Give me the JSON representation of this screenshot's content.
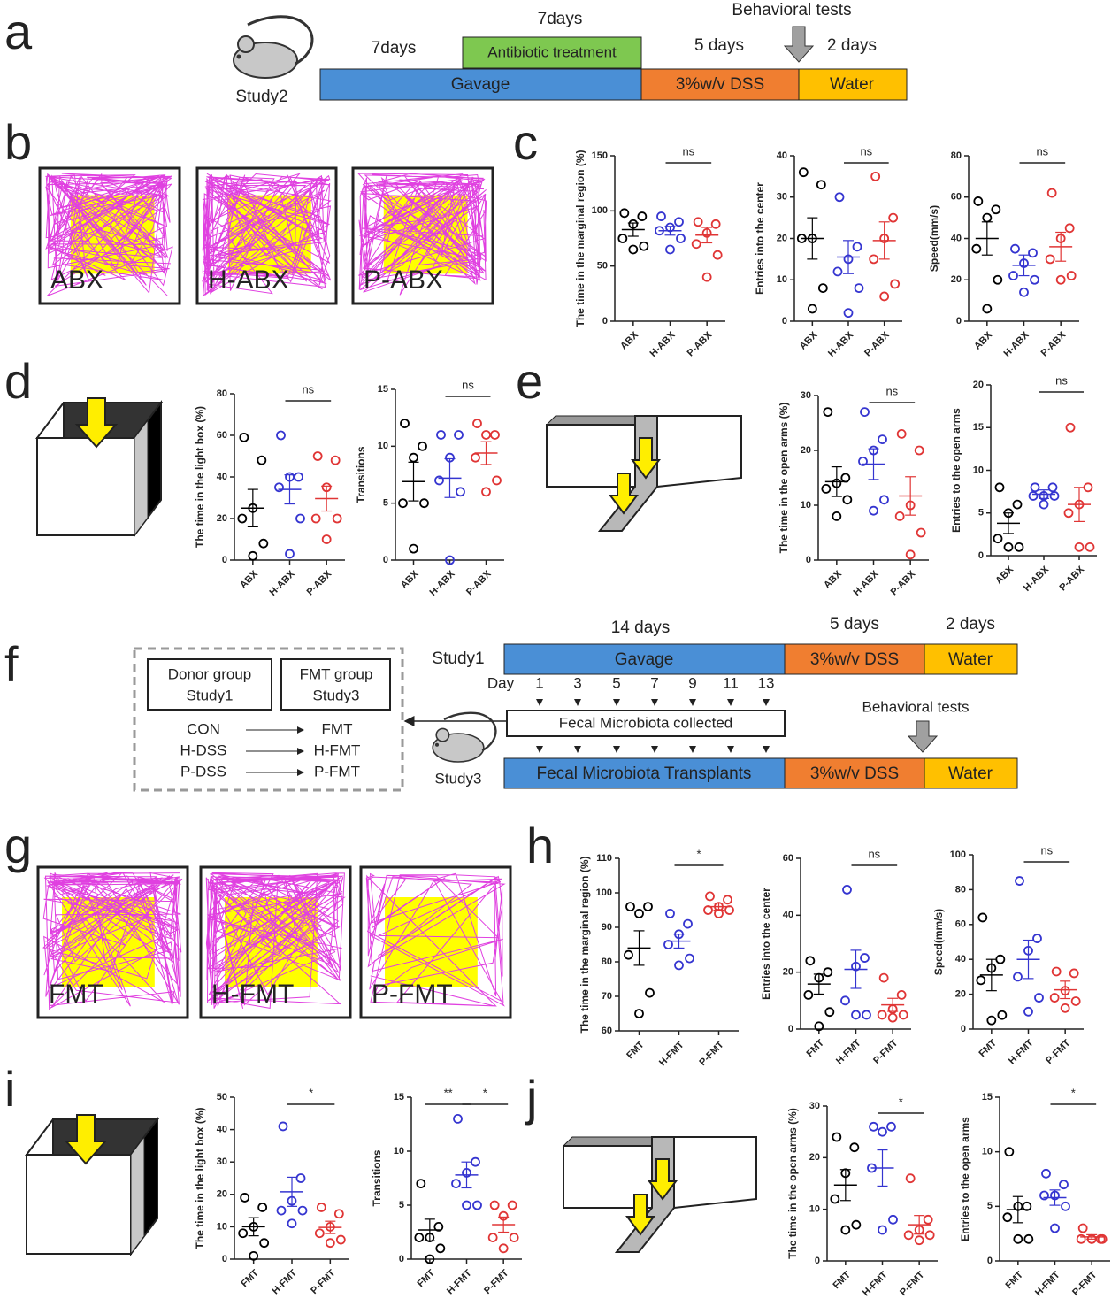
{
  "panel_letters": [
    "a",
    "b",
    "c",
    "d",
    "e",
    "f",
    "g",
    "h",
    "i",
    "j"
  ],
  "timeline_a": {
    "study": "Study2",
    "durations": [
      "7days",
      "7days",
      "5 days",
      "2 days"
    ],
    "phases": [
      "Gavage",
      "Antibiotic treatment",
      "3%w/v DSS",
      "Water"
    ],
    "note": "Behavioral tests"
  },
  "open_field_b": [
    "ABX",
    "H-ABX",
    "P-ABX"
  ],
  "open_field_g": [
    "FMT",
    "H-FMT",
    "P-FMT"
  ],
  "timeline_f": {
    "study_top": "Study1",
    "study_bottom": "Study3",
    "durations": [
      "14 days",
      "5 days",
      "2 days"
    ],
    "phases_top": [
      "Gavage",
      "3%w/v DSS",
      "Water"
    ],
    "phases_bottom": [
      "Fecal Microbiota Transplants",
      "3%w/v DSS",
      "Water"
    ],
    "day_label": "Day",
    "days": [
      1,
      3,
      5,
      7,
      9,
      11,
      13
    ],
    "collected": "Fecal Microbiota collected",
    "note": "Behavioral tests",
    "donor_group": [
      "Donor group",
      "Study1"
    ],
    "fmt_group": [
      "FMT group",
      "Study3"
    ],
    "donors": [
      "CON",
      "H-DSS",
      "P-DSS"
    ],
    "recipients": [
      "FMT",
      "H-FMT",
      "P-FMT"
    ]
  },
  "chart_data": [
    {
      "type": "dot",
      "ylabel": "The time in the marginal region (%)",
      "categories": [
        "ABX",
        "H-ABX",
        "P-ABX"
      ],
      "colors": [
        "#000000",
        "#3535d0",
        "#e03535"
      ],
      "points": [
        [
          98,
          95,
          88,
          75,
          68,
          65
        ],
        [
          95,
          90,
          85,
          82,
          75,
          65
        ],
        [
          90,
          88,
          80,
          70,
          60,
          40
        ]
      ],
      "means": [
        83,
        82,
        78
      ],
      "sems": [
        6,
        4,
        7
      ],
      "ylim": [
        0,
        150
      ],
      "yticks": [
        0,
        50,
        100,
        150
      ],
      "annotations": [
        {
          "label": "ns",
          "between": [
            "H-ABX",
            "P-ABX"
          ]
        }
      ]
    },
    {
      "type": "dot",
      "ylabel": "Entries into the center",
      "categories": [
        "ABX",
        "H-ABX",
        "P-ABX"
      ],
      "colors": [
        "#000000",
        "#3535d0",
        "#e03535"
      ],
      "points": [
        [
          36,
          33,
          20,
          20,
          8,
          3
        ],
        [
          30,
          18,
          15,
          12,
          8,
          2
        ],
        [
          35,
          25,
          20,
          15,
          9,
          6
        ]
      ],
      "means": [
        20,
        15.5,
        19.5
      ],
      "sems": [
        5,
        4,
        4.5
      ],
      "ylim": [
        0,
        40
      ],
      "yticks": [
        0,
        10,
        20,
        30,
        40
      ],
      "annotations": [
        {
          "label": "ns",
          "between": [
            "H-ABX",
            "P-ABX"
          ]
        }
      ]
    },
    {
      "type": "dot",
      "ylabel": "Speed(mm/s)",
      "categories": [
        "ABX",
        "H-ABX",
        "P-ABX"
      ],
      "colors": [
        "#000000",
        "#3535d0",
        "#e03535"
      ],
      "points": [
        [
          58,
          54,
          50,
          35,
          20,
          6
        ],
        [
          35,
          33,
          28,
          22,
          20,
          14
        ],
        [
          62,
          45,
          40,
          30,
          22,
          20
        ]
      ],
      "means": [
        40,
        27,
        36
      ],
      "sems": [
        8,
        5,
        7
      ],
      "ylim": [
        0,
        80
      ],
      "yticks": [
        0,
        20,
        40,
        60,
        80
      ],
      "annotations": [
        {
          "label": "ns",
          "between": [
            "H-ABX",
            "P-ABX"
          ]
        }
      ]
    },
    {
      "type": "dot",
      "ylabel": "The time in the light box (%)",
      "categories": [
        "ABX",
        "H-ABX",
        "P-ABX"
      ],
      "colors": [
        "#000000",
        "#3535d0",
        "#e03535"
      ],
      "points": [
        [
          59,
          48,
          25,
          20,
          8,
          2
        ],
        [
          60,
          40,
          40,
          35,
          20,
          3
        ],
        [
          50,
          48,
          35,
          20,
          20,
          10
        ]
      ],
      "means": [
        25,
        34,
        29.6
      ],
      "sems": [
        9,
        7,
        6
      ],
      "ylim": [
        0,
        80
      ],
      "yticks": [
        0,
        20,
        40,
        60,
        80
      ],
      "annotations": [
        {
          "label": "ns",
          "between": [
            "H-ABX",
            "P-ABX"
          ]
        }
      ]
    },
    {
      "type": "dot",
      "ylabel": "Transitions",
      "categories": [
        "ABX",
        "H-ABX",
        "P-ABX"
      ],
      "colors": [
        "#000000",
        "#3535d0",
        "#e03535"
      ],
      "points": [
        [
          12,
          10,
          9,
          5,
          5,
          1
        ],
        [
          11,
          11,
          9,
          7,
          6,
          0
        ],
        [
          12,
          11,
          11,
          9,
          7,
          6
        ]
      ],
      "means": [
        6.9,
        7.2,
        9.4
      ],
      "sems": [
        1.7,
        1.7,
        1
      ],
      "ylim": [
        0,
        15
      ],
      "yticks": [
        0,
        5,
        10,
        15
      ],
      "annotations": [
        {
          "label": "ns",
          "between": [
            "H-ABX",
            "P-ABX"
          ]
        }
      ]
    },
    {
      "type": "dot",
      "ylabel": "The time in the open arms (%)",
      "categories": [
        "ABX",
        "H-ABX",
        "P-ABX"
      ],
      "colors": [
        "#000000",
        "#3535d0",
        "#e03535"
      ],
      "points": [
        [
          27,
          15,
          14,
          13,
          11,
          8
        ],
        [
          27,
          22,
          20,
          18,
          11,
          9
        ],
        [
          23,
          20,
          10,
          8,
          5,
          1
        ]
      ],
      "means": [
        14.3,
        17.5,
        11.7
      ],
      "sems": [
        2.7,
        2.8,
        3.5
      ],
      "ylim": [
        0,
        30
      ],
      "yticks": [
        0,
        10,
        20,
        30
      ],
      "annotations": [
        {
          "label": "ns",
          "between": [
            "H-ABX",
            "P-ABX"
          ]
        }
      ]
    },
    {
      "type": "dot",
      "ylabel": "Entries to the open arms",
      "categories": [
        "ABX",
        "H-ABX",
        "P-ABX"
      ],
      "colors": [
        "#000000",
        "#3535d0",
        "#e03535"
      ],
      "points": [
        [
          8,
          6,
          5,
          2,
          1,
          1
        ],
        [
          8,
          8,
          7,
          7,
          7,
          6
        ],
        [
          15,
          8,
          6,
          5,
          1,
          1
        ]
      ],
      "means": [
        3.8,
        7.2,
        6
      ],
      "sems": [
        1.2,
        0.5,
        2
      ],
      "ylim": [
        0,
        20
      ],
      "yticks": [
        0,
        5,
        10,
        15,
        20
      ],
      "annotations": [
        {
          "label": "ns",
          "between": [
            "H-ABX",
            "P-ABX"
          ]
        }
      ]
    },
    {
      "type": "dot",
      "ylabel": "The time in the marginal region (%)",
      "categories": [
        "FMT",
        "H-FMT",
        "P-FMT"
      ],
      "colors": [
        "#000000",
        "#3535d0",
        "#e03535"
      ],
      "points": [
        [
          96,
          96,
          94,
          82,
          71,
          65
        ],
        [
          94,
          91,
          88,
          85,
          81,
          79
        ],
        [
          99,
          98,
          96,
          95,
          95,
          94
        ]
      ],
      "means": [
        84,
        86,
        96
      ],
      "sems": [
        5,
        2,
        1
      ],
      "ylim": [
        60,
        110
      ],
      "yticks": [
        60,
        70,
        80,
        90,
        100,
        110
      ],
      "annotations": [
        {
          "label": "*",
          "between": [
            "H-FMT",
            "P-FMT"
          ]
        }
      ]
    },
    {
      "type": "dot",
      "ylabel": "Entries into the center",
      "categories": [
        "FMT",
        "H-FMT",
        "P-FMT"
      ],
      "colors": [
        "#000000",
        "#3535d0",
        "#e03535"
      ],
      "points": [
        [
          24,
          20,
          18,
          12,
          6,
          1
        ],
        [
          49,
          25,
          22,
          10,
          5,
          5
        ],
        [
          18,
          12,
          7,
          5,
          5,
          4
        ]
      ],
      "means": [
        15.8,
        21,
        8.5
      ],
      "sems": [
        3.5,
        6.7,
        2.3
      ],
      "ylim": [
        0,
        60
      ],
      "yticks": [
        0,
        20,
        40,
        60
      ],
      "annotations": [
        {
          "label": "ns",
          "between": [
            "H-FMT",
            "P-FMT"
          ]
        }
      ]
    },
    {
      "type": "dot",
      "ylabel": "Speed(mm/s)",
      "categories": [
        "FMT",
        "H-FMT",
        "P-FMT"
      ],
      "colors": [
        "#000000",
        "#3535d0",
        "#e03535"
      ],
      "points": [
        [
          64,
          40,
          35,
          28,
          8,
          5
        ],
        [
          85,
          52,
          45,
          30,
          18,
          10
        ],
        [
          33,
          32,
          22,
          18,
          16,
          12
        ]
      ],
      "means": [
        31,
        40,
        22.5
      ],
      "sems": [
        9,
        11,
        5
      ],
      "ylim": [
        0,
        100
      ],
      "yticks": [
        0,
        20,
        40,
        60,
        80,
        100
      ],
      "annotations": [
        {
          "label": "ns",
          "between": [
            "H-FMT",
            "P-FMT"
          ]
        }
      ]
    },
    {
      "type": "dot",
      "ylabel": "The time in the light box (%)",
      "categories": [
        "FMT",
        "H-FMT",
        "P-FMT"
      ],
      "colors": [
        "#000000",
        "#3535d0",
        "#e03535"
      ],
      "points": [
        [
          19,
          16,
          10,
          8,
          5,
          1
        ],
        [
          41,
          25,
          18,
          15,
          15,
          11
        ],
        [
          16,
          14,
          10,
          8,
          6,
          5
        ]
      ],
      "means": [
        10,
        20.8,
        9.8
      ],
      "sems": [
        2.8,
        4.5,
        1.9
      ],
      "ylim": [
        0,
        50
      ],
      "yticks": [
        0,
        10,
        20,
        30,
        40,
        50
      ],
      "annotations": [
        {
          "label": "*",
          "between": [
            "H-FMT",
            "P-FMT"
          ]
        }
      ]
    },
    {
      "type": "dot",
      "ylabel": "Transitions",
      "categories": [
        "FMT",
        "H-FMT",
        "P-FMT"
      ],
      "colors": [
        "#000000",
        "#3535d0",
        "#e03535"
      ],
      "points": [
        [
          7,
          3,
          2,
          2,
          1,
          0
        ],
        [
          13,
          9,
          8,
          7,
          5,
          5
        ],
        [
          5,
          5,
          4,
          2,
          2,
          1
        ]
      ],
      "means": [
        2.7,
        7.8,
        3.2
      ],
      "sems": [
        1,
        1.2,
        0.7
      ],
      "ylim": [
        0,
        15
      ],
      "yticks": [
        0,
        5,
        10,
        15
      ],
      "annotations": [
        {
          "label": "**",
          "between": [
            "FMT",
            "H-FMT"
          ]
        },
        {
          "label": "*",
          "between": [
            "H-FMT",
            "P-FMT"
          ]
        }
      ]
    },
    {
      "type": "dot",
      "ylabel": "The time in the open arms (%)",
      "categories": [
        "FMT",
        "H-FMT",
        "P-FMT"
      ],
      "colors": [
        "#000000",
        "#3535d0",
        "#e03535"
      ],
      "points": [
        [
          24,
          22,
          17,
          12,
          7,
          6
        ],
        [
          26,
          26,
          25,
          18,
          8,
          6
        ],
        [
          16,
          8,
          6,
          5,
          5,
          4
        ]
      ],
      "means": [
        14.7,
        18,
        7
      ],
      "sems": [
        3,
        3.5,
        1.8
      ],
      "ylim": [
        0,
        30
      ],
      "yticks": [
        0,
        10,
        20,
        30
      ],
      "annotations": [
        {
          "label": "*",
          "between": [
            "H-FMT",
            "P-FMT"
          ]
        }
      ]
    },
    {
      "type": "dot",
      "ylabel": "Entries to the open arms",
      "categories": [
        "FMT",
        "H-FMT",
        "P-FMT"
      ],
      "colors": [
        "#000000",
        "#3535d0",
        "#e03535"
      ],
      "points": [
        [
          10,
          5,
          5,
          4,
          2,
          2
        ],
        [
          8,
          7,
          6,
          6,
          5,
          3
        ],
        [
          3,
          2,
          2,
          2,
          2,
          2
        ]
      ],
      "means": [
        4.7,
        5.8,
        2.2
      ],
      "sems": [
        1.2,
        0.7,
        0.2
      ],
      "ylim": [
        0,
        15
      ],
      "yticks": [
        0,
        5,
        10,
        15
      ],
      "annotations": [
        {
          "label": "*",
          "between": [
            "H-FMT",
            "P-FMT"
          ]
        }
      ]
    }
  ]
}
